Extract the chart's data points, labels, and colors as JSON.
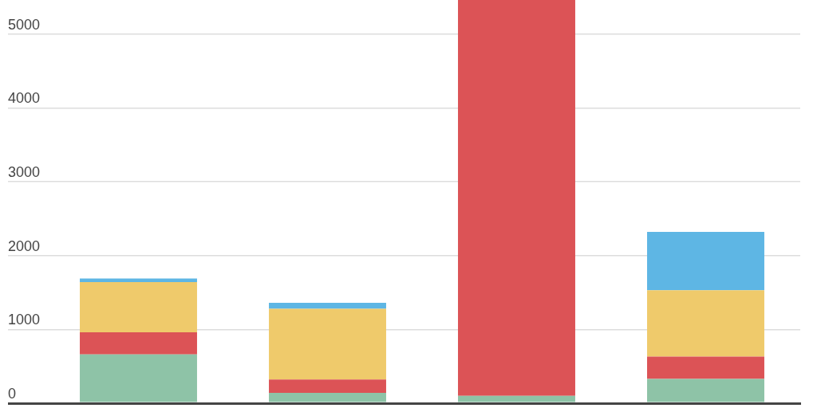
{
  "chart_data": {
    "type": "bar",
    "stacked": true,
    "categories": [
      null,
      null,
      null,
      null
    ],
    "series": [
      {
        "color": "#8ec3a7",
        "values": [
          660,
          140,
          100,
          330
        ]
      },
      {
        "color": "#dc5356",
        "values": [
          300,
          180,
          5360,
          300
        ]
      },
      {
        "color": "#efca6b",
        "values": [
          680,
          960,
          null,
          900
        ]
      },
      {
        "color": "#5eb6e4",
        "values": [
          50,
          80,
          null,
          790
        ]
      }
    ],
    "ylim": [
      0,
      5460
    ],
    "yticks": [
      0,
      1000,
      2000,
      3000,
      4000,
      5000
    ],
    "grid": "y"
  }
}
